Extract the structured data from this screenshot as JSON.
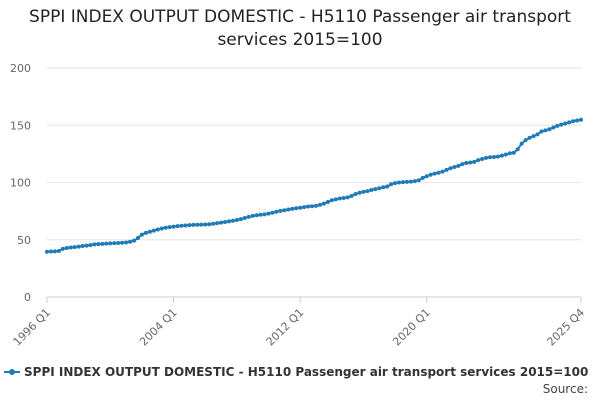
{
  "chart_data": {
    "type": "line",
    "title": "SPPI INDEX OUTPUT DOMESTIC - H5110 Passenger air transport services 2015=100",
    "xlabel": "",
    "ylabel": "",
    "ylim": [
      0,
      200
    ],
    "y_ticks": [
      0,
      50,
      100,
      150,
      200
    ],
    "x_ticks": [
      "1996 Q1",
      "2004 Q1",
      "2012 Q1",
      "2020 Q1",
      "2025 Q4"
    ],
    "grid": true,
    "legend_position": "bottom",
    "series_color": "#1f7ab8",
    "series": [
      {
        "name": "SPPI INDEX OUTPUT DOMESTIC - H5110 Passenger air transport services 2015=100",
        "values": [
          39.5,
          39.7,
          39.8,
          40.2,
          42,
          42.8,
          43.2,
          43.6,
          44,
          44.5,
          44.9,
          45.3,
          46,
          46.2,
          46.4,
          46.6,
          46.8,
          47,
          47.2,
          47.4,
          47.6,
          48.2,
          49.2,
          51.5,
          54.5,
          56,
          57,
          58,
          59,
          59.8,
          60.5,
          61,
          61.5,
          61.9,
          62.2,
          62.5,
          62.8,
          63,
          63.1,
          63.2,
          63.3,
          63.5,
          64,
          64.5,
          65,
          65.5,
          66,
          66.6,
          67.2,
          68,
          69,
          70,
          70.8,
          71.4,
          71.8,
          72.2,
          72.8,
          73.6,
          74.5,
          75.2,
          75.8,
          76.4,
          77,
          77.5,
          78,
          78.5,
          79,
          79.3,
          79.6,
          80.5,
          81.5,
          83,
          84.5,
          85.3,
          86,
          86.5,
          87,
          88.2,
          90,
          91,
          91.8,
          92.5,
          93.4,
          94.2,
          95,
          95.8,
          96.5,
          98.5,
          99.5,
          100,
          100.3,
          100.5,
          100.8,
          101.2,
          102,
          104,
          105.5,
          106.8,
          107.8,
          108.5,
          109.5,
          111,
          112.5,
          113.5,
          114.5,
          116,
          117,
          117.5,
          118,
          119.5,
          120.5,
          121.5,
          122,
          122.3,
          122.6,
          123.5,
          124.5,
          125.5,
          126,
          129,
          134,
          137,
          139,
          140.5,
          142,
          144.5,
          145.5,
          146.5,
          148,
          149.5,
          150.5,
          151.5,
          152.5,
          153.5,
          154.2,
          154.8
        ]
      }
    ],
    "source_label": "Source:"
  }
}
